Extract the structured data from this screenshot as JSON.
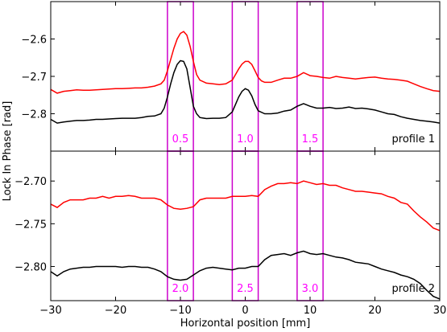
{
  "chart_data": [
    {
      "type": "line",
      "panel_label": "profile 1",
      "ylim": [
        -2.9,
        -2.5
      ],
      "yticks": [
        -2.8,
        -2.7,
        -2.6
      ],
      "ytick_labels": [
        "−2.8",
        "−2.7",
        "−2.6"
      ],
      "series": [
        {
          "color": "#ff0000",
          "points": [
            [
              -30,
              -2.735
            ],
            [
              -29,
              -2.745
            ],
            [
              -28,
              -2.74
            ],
            [
              -27,
              -2.738
            ],
            [
              -26,
              -2.736
            ],
            [
              -25,
              -2.737
            ],
            [
              -24,
              -2.737
            ],
            [
              -23,
              -2.736
            ],
            [
              -22,
              -2.735
            ],
            [
              -21,
              -2.734
            ],
            [
              -20,
              -2.733
            ],
            [
              -19,
              -2.733
            ],
            [
              -18,
              -2.732
            ],
            [
              -17,
              -2.731
            ],
            [
              -16,
              -2.731
            ],
            [
              -15,
              -2.729
            ],
            [
              -14,
              -2.726
            ],
            [
              -13,
              -2.72
            ],
            [
              -12.5,
              -2.71
            ],
            [
              -12,
              -2.685
            ],
            [
              -11.5,
              -2.655
            ],
            [
              -11,
              -2.625
            ],
            [
              -10.5,
              -2.6
            ],
            [
              -10,
              -2.585
            ],
            [
              -9.5,
              -2.58
            ],
            [
              -9,
              -2.59
            ],
            [
              -8.5,
              -2.62
            ],
            [
              -8,
              -2.66
            ],
            [
              -7.5,
              -2.695
            ],
            [
              -7,
              -2.71
            ],
            [
              -6,
              -2.718
            ],
            [
              -5,
              -2.72
            ],
            [
              -4,
              -2.722
            ],
            [
              -3,
              -2.72
            ],
            [
              -2,
              -2.71
            ],
            [
              -1.5,
              -2.695
            ],
            [
              -1,
              -2.68
            ],
            [
              -0.5,
              -2.667
            ],
            [
              0,
              -2.66
            ],
            [
              0.5,
              -2.66
            ],
            [
              1,
              -2.668
            ],
            [
              1.5,
              -2.685
            ],
            [
              2,
              -2.703
            ],
            [
              2.5,
              -2.712
            ],
            [
              3,
              -2.716
            ],
            [
              4,
              -2.716
            ],
            [
              5,
              -2.71
            ],
            [
              6,
              -2.705
            ],
            [
              7,
              -2.705
            ],
            [
              8,
              -2.7
            ],
            [
              9,
              -2.69
            ],
            [
              10,
              -2.698
            ],
            [
              11,
              -2.7
            ],
            [
              12,
              -2.703
            ],
            [
              13,
              -2.705
            ],
            [
              14,
              -2.7
            ],
            [
              15,
              -2.703
            ],
            [
              16,
              -2.705
            ],
            [
              17,
              -2.707
            ],
            [
              18,
              -2.705
            ],
            [
              19,
              -2.703
            ],
            [
              20,
              -2.702
            ],
            [
              21,
              -2.705
            ],
            [
              22,
              -2.707
            ],
            [
              23,
              -2.708
            ],
            [
              24,
              -2.71
            ],
            [
              25,
              -2.713
            ],
            [
              26,
              -2.72
            ],
            [
              27,
              -2.727
            ],
            [
              28,
              -2.733
            ],
            [
              29,
              -2.738
            ],
            [
              30,
              -2.74
            ]
          ]
        },
        {
          "color": "#000000",
          "points": [
            [
              -30,
              -2.815
            ],
            [
              -29,
              -2.825
            ],
            [
              -28,
              -2.822
            ],
            [
              -27,
              -2.82
            ],
            [
              -26,
              -2.818
            ],
            [
              -25,
              -2.818
            ],
            [
              -24,
              -2.817
            ],
            [
              -23,
              -2.815
            ],
            [
              -22,
              -2.815
            ],
            [
              -21,
              -2.814
            ],
            [
              -20,
              -2.813
            ],
            [
              -19,
              -2.812
            ],
            [
              -18,
              -2.812
            ],
            [
              -17,
              -2.812
            ],
            [
              -16,
              -2.81
            ],
            [
              -15,
              -2.807
            ],
            [
              -14,
              -2.806
            ],
            [
              -13,
              -2.8
            ],
            [
              -12.5,
              -2.785
            ],
            [
              -12,
              -2.755
            ],
            [
              -11.5,
              -2.72
            ],
            [
              -11,
              -2.69
            ],
            [
              -10.5,
              -2.668
            ],
            [
              -10,
              -2.658
            ],
            [
              -9.5,
              -2.66
            ],
            [
              -9,
              -2.68
            ],
            [
              -8.5,
              -2.73
            ],
            [
              -8,
              -2.78
            ],
            [
              -7.5,
              -2.8
            ],
            [
              -7,
              -2.81
            ],
            [
              -6,
              -2.813
            ],
            [
              -5,
              -2.812
            ],
            [
              -4,
              -2.812
            ],
            [
              -3,
              -2.81
            ],
            [
              -2,
              -2.795
            ],
            [
              -1.5,
              -2.775
            ],
            [
              -1,
              -2.755
            ],
            [
              -0.5,
              -2.74
            ],
            [
              0,
              -2.733
            ],
            [
              0.5,
              -2.737
            ],
            [
              1,
              -2.752
            ],
            [
              1.5,
              -2.775
            ],
            [
              2,
              -2.792
            ],
            [
              3,
              -2.8
            ],
            [
              4,
              -2.8
            ],
            [
              5,
              -2.798
            ],
            [
              6,
              -2.793
            ],
            [
              7,
              -2.79
            ],
            [
              8,
              -2.78
            ],
            [
              9,
              -2.773
            ],
            [
              10,
              -2.78
            ],
            [
              11,
              -2.785
            ],
            [
              12,
              -2.785
            ],
            [
              13,
              -2.783
            ],
            [
              14,
              -2.786
            ],
            [
              15,
              -2.785
            ],
            [
              16,
              -2.782
            ],
            [
              17,
              -2.786
            ],
            [
              18,
              -2.785
            ],
            [
              19,
              -2.787
            ],
            [
              20,
              -2.79
            ],
            [
              21,
              -2.795
            ],
            [
              22,
              -2.8
            ],
            [
              23,
              -2.802
            ],
            [
              24,
              -2.808
            ],
            [
              25,
              -2.812
            ],
            [
              26,
              -2.815
            ],
            [
              27,
              -2.818
            ],
            [
              28,
              -2.82
            ],
            [
              29,
              -2.822
            ],
            [
              30,
              -2.825
            ]
          ]
        }
      ],
      "boxes": [
        {
          "x0": -12,
          "x1": -8,
          "label": "0.5"
        },
        {
          "x0": -2,
          "x1": 2,
          "label": "1.0"
        },
        {
          "x0": 8,
          "x1": 12,
          "label": "1.5"
        }
      ]
    },
    {
      "type": "line",
      "panel_label": "profile 2",
      "ylim": [
        -2.84,
        -2.665
      ],
      "yticks": [
        -2.8,
        -2.75,
        -2.7
      ],
      "ytick_labels": [
        "−2.80",
        "−2.75",
        "−2.70"
      ],
      "series": [
        {
          "color": "#ff0000",
          "points": [
            [
              -30,
              -2.727
            ],
            [
              -29,
              -2.731
            ],
            [
              -28,
              -2.725
            ],
            [
              -27,
              -2.722
            ],
            [
              -26,
              -2.722
            ],
            [
              -25,
              -2.722
            ],
            [
              -24,
              -2.72
            ],
            [
              -23,
              -2.72
            ],
            [
              -22,
              -2.718
            ],
            [
              -21,
              -2.72
            ],
            [
              -20,
              -2.718
            ],
            [
              -19,
              -2.718
            ],
            [
              -18,
              -2.717
            ],
            [
              -17,
              -2.718
            ],
            [
              -16,
              -2.72
            ],
            [
              -15,
              -2.72
            ],
            [
              -14,
              -2.72
            ],
            [
              -13,
              -2.722
            ],
            [
              -12,
              -2.728
            ],
            [
              -11,
              -2.732
            ],
            [
              -10,
              -2.733
            ],
            [
              -9,
              -2.732
            ],
            [
              -8,
              -2.73
            ],
            [
              -7,
              -2.722
            ],
            [
              -6,
              -2.72
            ],
            [
              -5,
              -2.72
            ],
            [
              -4,
              -2.72
            ],
            [
              -3,
              -2.72
            ],
            [
              -2,
              -2.718
            ],
            [
              -1,
              -2.718
            ],
            [
              0,
              -2.718
            ],
            [
              1,
              -2.717
            ],
            [
              2,
              -2.718
            ],
            [
              3,
              -2.71
            ],
            [
              4,
              -2.706
            ],
            [
              5,
              -2.703
            ],
            [
              6,
              -2.703
            ],
            [
              7,
              -2.702
            ],
            [
              8,
              -2.703
            ],
            [
              9,
              -2.7
            ],
            [
              10,
              -2.702
            ],
            [
              11,
              -2.704
            ],
            [
              12,
              -2.703
            ],
            [
              13,
              -2.705
            ],
            [
              14,
              -2.705
            ],
            [
              15,
              -2.708
            ],
            [
              16,
              -2.71
            ],
            [
              17,
              -2.712
            ],
            [
              18,
              -2.712
            ],
            [
              19,
              -2.713
            ],
            [
              20,
              -2.714
            ],
            [
              21,
              -2.715
            ],
            [
              22,
              -2.718
            ],
            [
              23,
              -2.72
            ],
            [
              24,
              -2.725
            ],
            [
              25,
              -2.727
            ],
            [
              26,
              -2.735
            ],
            [
              27,
              -2.742
            ],
            [
              28,
              -2.748
            ],
            [
              29,
              -2.755
            ],
            [
              30,
              -2.758
            ]
          ]
        },
        {
          "color": "#000000",
          "points": [
            [
              -30,
              -2.806
            ],
            [
              -29,
              -2.811
            ],
            [
              -28,
              -2.806
            ],
            [
              -27,
              -2.803
            ],
            [
              -26,
              -2.802
            ],
            [
              -25,
              -2.801
            ],
            [
              -24,
              -2.801
            ],
            [
              -23,
              -2.8
            ],
            [
              -22,
              -2.8
            ],
            [
              -21,
              -2.8
            ],
            [
              -20,
              -2.8
            ],
            [
              -19,
              -2.801
            ],
            [
              -18,
              -2.8
            ],
            [
              -17,
              -2.8
            ],
            [
              -16,
              -2.801
            ],
            [
              -15,
              -2.801
            ],
            [
              -14,
              -2.803
            ],
            [
              -13,
              -2.806
            ],
            [
              -12,
              -2.812
            ],
            [
              -11,
              -2.815
            ],
            [
              -10,
              -2.816
            ],
            [
              -9,
              -2.815
            ],
            [
              -8,
              -2.81
            ],
            [
              -7,
              -2.805
            ],
            [
              -6,
              -2.802
            ],
            [
              -5,
              -2.801
            ],
            [
              -4,
              -2.802
            ],
            [
              -3,
              -2.803
            ],
            [
              -2,
              -2.804
            ],
            [
              -1,
              -2.802
            ],
            [
              0,
              -2.802
            ],
            [
              1,
              -2.8
            ],
            [
              2,
              -2.8
            ],
            [
              3,
              -2.792
            ],
            [
              4,
              -2.787
            ],
            [
              5,
              -2.786
            ],
            [
              6,
              -2.785
            ],
            [
              7,
              -2.787
            ],
            [
              8,
              -2.784
            ],
            [
              9,
              -2.782
            ],
            [
              10,
              -2.785
            ],
            [
              11,
              -2.786
            ],
            [
              12,
              -2.785
            ],
            [
              13,
              -2.787
            ],
            [
              14,
              -2.789
            ],
            [
              15,
              -2.79
            ],
            [
              16,
              -2.792
            ],
            [
              17,
              -2.795
            ],
            [
              18,
              -2.796
            ],
            [
              19,
              -2.797
            ],
            [
              20,
              -2.8
            ],
            [
              21,
              -2.803
            ],
            [
              22,
              -2.805
            ],
            [
              23,
              -2.807
            ],
            [
              24,
              -2.81
            ],
            [
              25,
              -2.812
            ],
            [
              26,
              -2.815
            ],
            [
              27,
              -2.82
            ],
            [
              28,
              -2.828
            ],
            [
              29,
              -2.835
            ],
            [
              30,
              -2.838
            ]
          ]
        }
      ],
      "boxes": [
        {
          "x0": -12,
          "x1": -8,
          "label": "2.0"
        },
        {
          "x0": -2,
          "x1": 2,
          "label": "2.5"
        },
        {
          "x0": 8,
          "x1": 12,
          "label": "3.0"
        }
      ]
    }
  ],
  "shared": {
    "xlim": [
      -30,
      30
    ],
    "xticks": [
      -30,
      -20,
      -10,
      0,
      10,
      20,
      30
    ],
    "xtick_labels": [
      "−30",
      "−20",
      "−10",
      "0",
      "10",
      "20",
      "30"
    ],
    "xlabel": "Horizontal position [mm]",
    "ylabel": "Lock In Phase [rad]",
    "box_color": "#cc00cc",
    "label_color": "#ff00ff"
  }
}
